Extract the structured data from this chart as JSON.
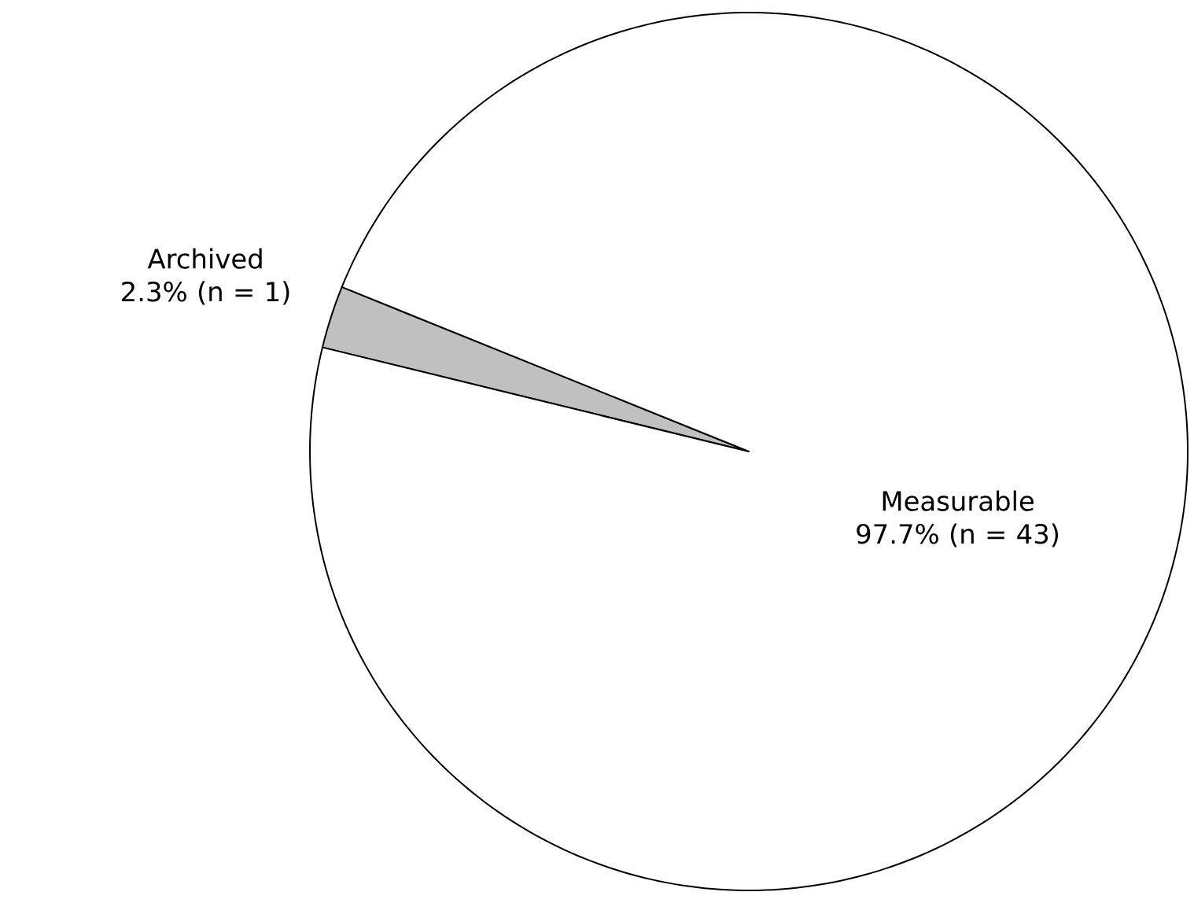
{
  "chart_data": {
    "type": "pie",
    "categories": [
      "Archived",
      "Measurable"
    ],
    "values": [
      2.3,
      97.7
    ],
    "value_labels": [
      "2.3% (n = 1)",
      "97.7% (n = 43)"
    ],
    "colors": [
      "#c0c0c0",
      "#ffffff"
    ]
  }
}
